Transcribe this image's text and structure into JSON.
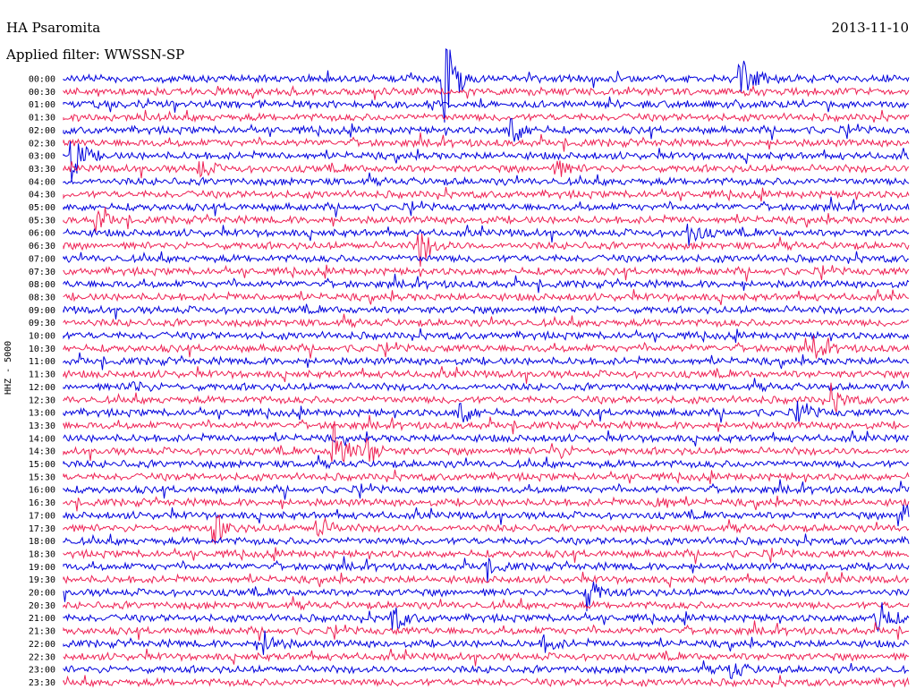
{
  "header": {
    "station": "HA Psaromita",
    "date": "2013-11-10",
    "filter": "Applied filter: WWSSN-SP"
  },
  "chart_data": {
    "type": "line",
    "title": "HA Psaromita",
    "subtitle": "Applied filter: WWSSN-SP",
    "ylabel": "HHZ - 5000",
    "colors": {
      "even": "#0000dd",
      "odd": "#ee2255"
    },
    "rows": [
      "00:00",
      "00:30",
      "01:00",
      "01:30",
      "02:00",
      "02:30",
      "03:00",
      "03:30",
      "04:00",
      "04:30",
      "05:00",
      "05:30",
      "06:00",
      "06:30",
      "07:00",
      "07:30",
      "08:00",
      "08:30",
      "09:00",
      "09:30",
      "10:00",
      "10:30",
      "11:00",
      "11:30",
      "12:00",
      "12:30",
      "13:00",
      "13:30",
      "14:00",
      "14:30",
      "15:00",
      "15:30",
      "16:00",
      "16:30",
      "17:00",
      "17:30",
      "18:00",
      "18:30",
      "19:00",
      "19:30",
      "20:00",
      "20:30",
      "21:00",
      "21:30",
      "22:00",
      "22:30",
      "23:00",
      "23:30"
    ],
    "events": [
      {
        "row": 0,
        "t": 0.45,
        "amp": 55
      },
      {
        "row": 0,
        "t": 0.8,
        "amp": 30
      },
      {
        "row": 4,
        "t": 0.53,
        "amp": 18
      },
      {
        "row": 6,
        "t": 0.01,
        "amp": 30
      },
      {
        "row": 7,
        "t": 0.16,
        "amp": 10
      },
      {
        "row": 7,
        "t": 0.58,
        "amp": 12
      },
      {
        "row": 11,
        "t": 0.04,
        "amp": 12
      },
      {
        "row": 12,
        "t": 0.74,
        "amp": 12
      },
      {
        "row": 13,
        "t": 0.42,
        "amp": 25
      },
      {
        "row": 21,
        "t": 0.89,
        "amp": 10
      },
      {
        "row": 24,
        "t": 0.08,
        "amp": 8
      },
      {
        "row": 25,
        "t": 0.91,
        "amp": 14
      },
      {
        "row": 26,
        "t": 0.87,
        "amp": 10
      },
      {
        "row": 26,
        "t": 0.47,
        "amp": 14
      },
      {
        "row": 29,
        "t": 0.32,
        "amp": 40
      },
      {
        "row": 29,
        "t": 0.36,
        "amp": 14
      },
      {
        "row": 29,
        "t": 0.58,
        "amp": 10
      },
      {
        "row": 33,
        "t": 0.7,
        "amp": 12
      },
      {
        "row": 34,
        "t": 0.99,
        "amp": 30
      },
      {
        "row": 35,
        "t": 0.18,
        "amp": 16
      },
      {
        "row": 35,
        "t": 0.3,
        "amp": 14
      },
      {
        "row": 38,
        "t": 0.5,
        "amp": 10
      },
      {
        "row": 40,
        "t": 0.62,
        "amp": 18
      },
      {
        "row": 42,
        "t": 0.39,
        "amp": 14
      },
      {
        "row": 42,
        "t": 0.96,
        "amp": 28
      },
      {
        "row": 44,
        "t": 0.24,
        "amp": 12
      },
      {
        "row": 44,
        "t": 0.57,
        "amp": 8
      },
      {
        "row": 46,
        "t": 0.79,
        "amp": 10
      }
    ]
  }
}
